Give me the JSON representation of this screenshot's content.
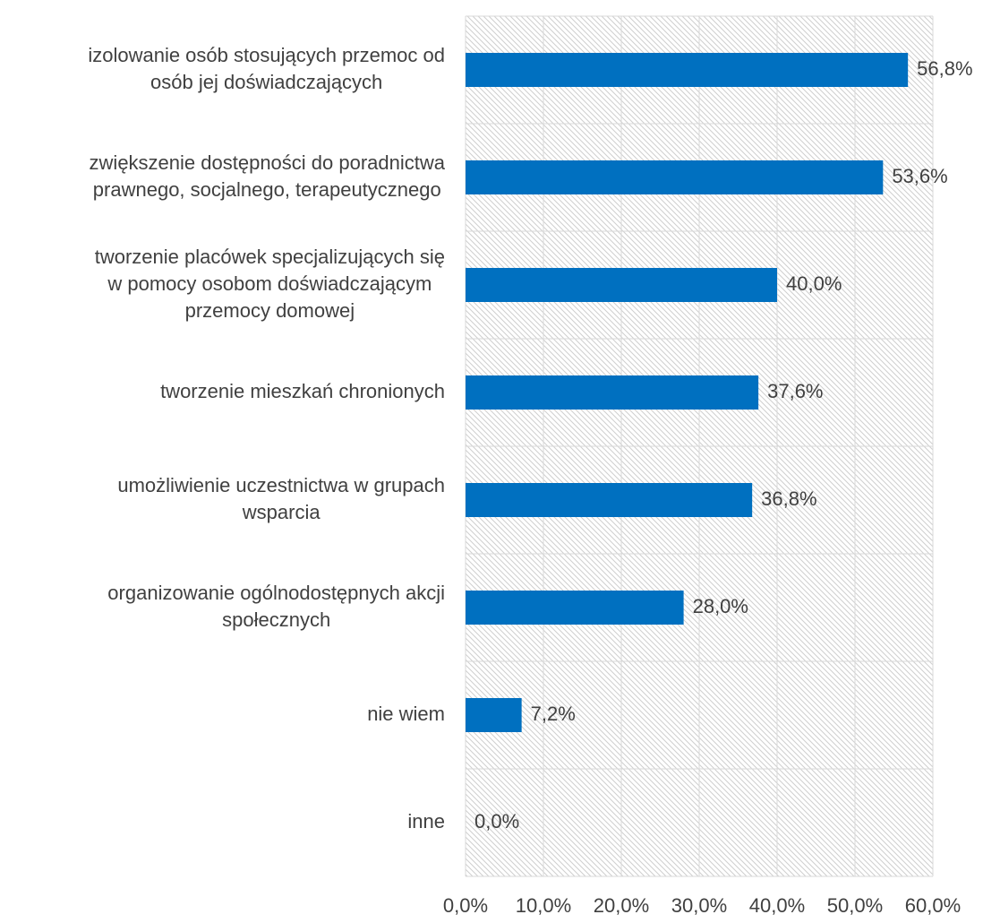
{
  "chart_data": {
    "type": "bar",
    "orientation": "horizontal",
    "categories": [
      [
        "izolowanie osób stosujących przemoc od",
        "osób jej doświadczających"
      ],
      [
        "zwiększenie dostępności do poradnictwa",
        "prawnego, socjalnego, terapeutycznego"
      ],
      [
        "tworzenie placówek specjalizujących się",
        "w pomocy osobom doświadczającym",
        "przemocy domowej"
      ],
      [
        "tworzenie mieszkań chronionych"
      ],
      [
        "umożliwienie uczestnictwa w grupach",
        "wsparcia"
      ],
      [
        "organizowanie ogólnodostępnych akcji",
        "społecznych"
      ],
      [
        "nie wiem"
      ],
      [
        "inne"
      ]
    ],
    "values": [
      56.8,
      53.6,
      40.0,
      37.6,
      36.8,
      28.0,
      7.2,
      0.0
    ],
    "value_labels": [
      "56,8%",
      "53,6%",
      "40,0%",
      "37,6%",
      "36,8%",
      "28,0%",
      "7,2%",
      "0,0%"
    ],
    "color": "#0070c0",
    "xlim": [
      0,
      60
    ],
    "xticks": [
      {
        "value": 0,
        "label": "0,0%"
      },
      {
        "value": 10,
        "label": "10,0%"
      },
      {
        "value": 20,
        "label": "20,0%"
      },
      {
        "value": 30,
        "label": "30,0%"
      },
      {
        "value": 40,
        "label": "40,0%"
      },
      {
        "value": 50,
        "label": "50,0%"
      },
      {
        "value": 60,
        "label": "60,0%"
      }
    ],
    "grid": true
  }
}
